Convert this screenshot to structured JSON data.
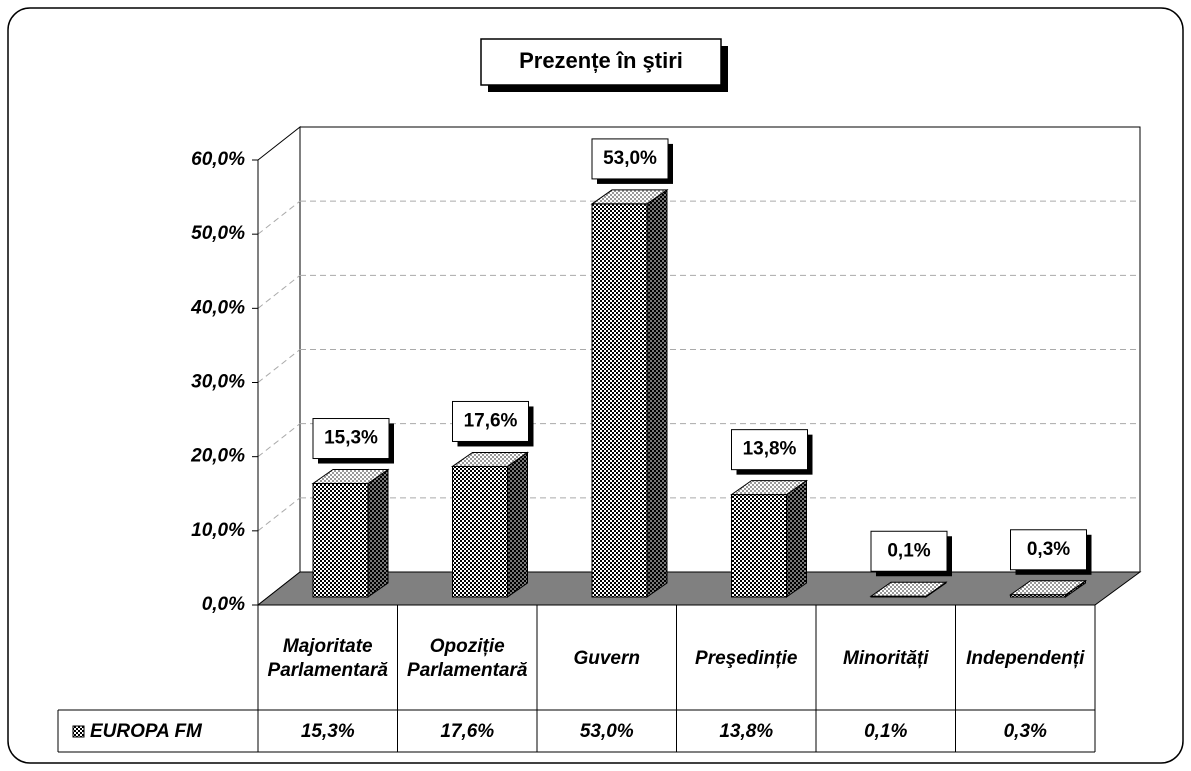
{
  "chart_data": {
    "type": "bar3d",
    "title": "Prezențe în ştiri",
    "categories": [
      "Majoritate Parlamentară",
      "Opoziție Parlamentară",
      "Guvern",
      "Preşedinție",
      "Minorități",
      "Independenți"
    ],
    "series": [
      {
        "name": "EUROPA FM",
        "color": "#808080",
        "values": [
          15.3,
          17.6,
          53.0,
          13.8,
          0.1,
          0.3
        ],
        "value_labels": [
          "15,3%",
          "17,6%",
          "53,0%",
          "13,8%",
          "0,1%",
          "0,3%"
        ]
      }
    ],
    "ylim": [
      0,
      60
    ],
    "yticks": [
      {
        "value": 0,
        "label": "0,0%"
      },
      {
        "value": 10,
        "label": "10,0%"
      },
      {
        "value": 20,
        "label": "20,0%"
      },
      {
        "value": 30,
        "label": "30,0%"
      },
      {
        "value": 40,
        "label": "40,0%"
      },
      {
        "value": 50,
        "label": "50,0%"
      },
      {
        "value": 60,
        "label": "60,0%"
      }
    ],
    "grid": true,
    "data_table": true
  }
}
